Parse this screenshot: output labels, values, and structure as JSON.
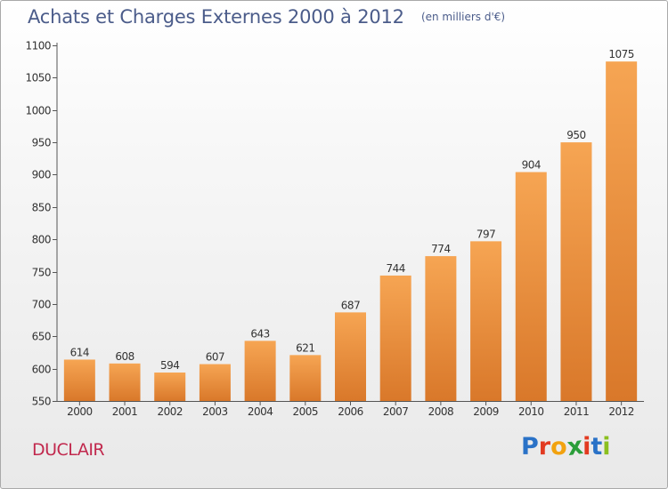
{
  "header": {
    "title": "Achats et Charges Externes 2000 à 2012",
    "subtitle": "(en milliers d'€)"
  },
  "footer": {
    "commune": "DUCLAIR",
    "brand_letters": [
      "P",
      "r",
      "o",
      "x",
      "i",
      "t",
      "i"
    ]
  },
  "colors": {
    "bar_top": "#f6a553",
    "bar_bottom": "#d9782a",
    "commune_text": "#c1284d",
    "title_text": "#4b5c8a"
  },
  "chart_data": {
    "type": "bar",
    "title": "Achats et Charges Externes 2000 à 2012",
    "subtitle": "(en milliers d'€)",
    "categories": [
      "2000",
      "2001",
      "2002",
      "2003",
      "2004",
      "2005",
      "2006",
      "2007",
      "2008",
      "2009",
      "2010",
      "2011",
      "2012"
    ],
    "values": [
      614,
      608,
      594,
      607,
      643,
      621,
      687,
      744,
      774,
      797,
      904,
      950,
      1075
    ],
    "ylim": [
      550,
      1100
    ],
    "yticks": [
      550,
      600,
      650,
      700,
      750,
      800,
      850,
      900,
      950,
      1000,
      1050,
      1100
    ],
    "xlabel": "",
    "ylabel": "",
    "grid": false,
    "data_labels": true
  }
}
